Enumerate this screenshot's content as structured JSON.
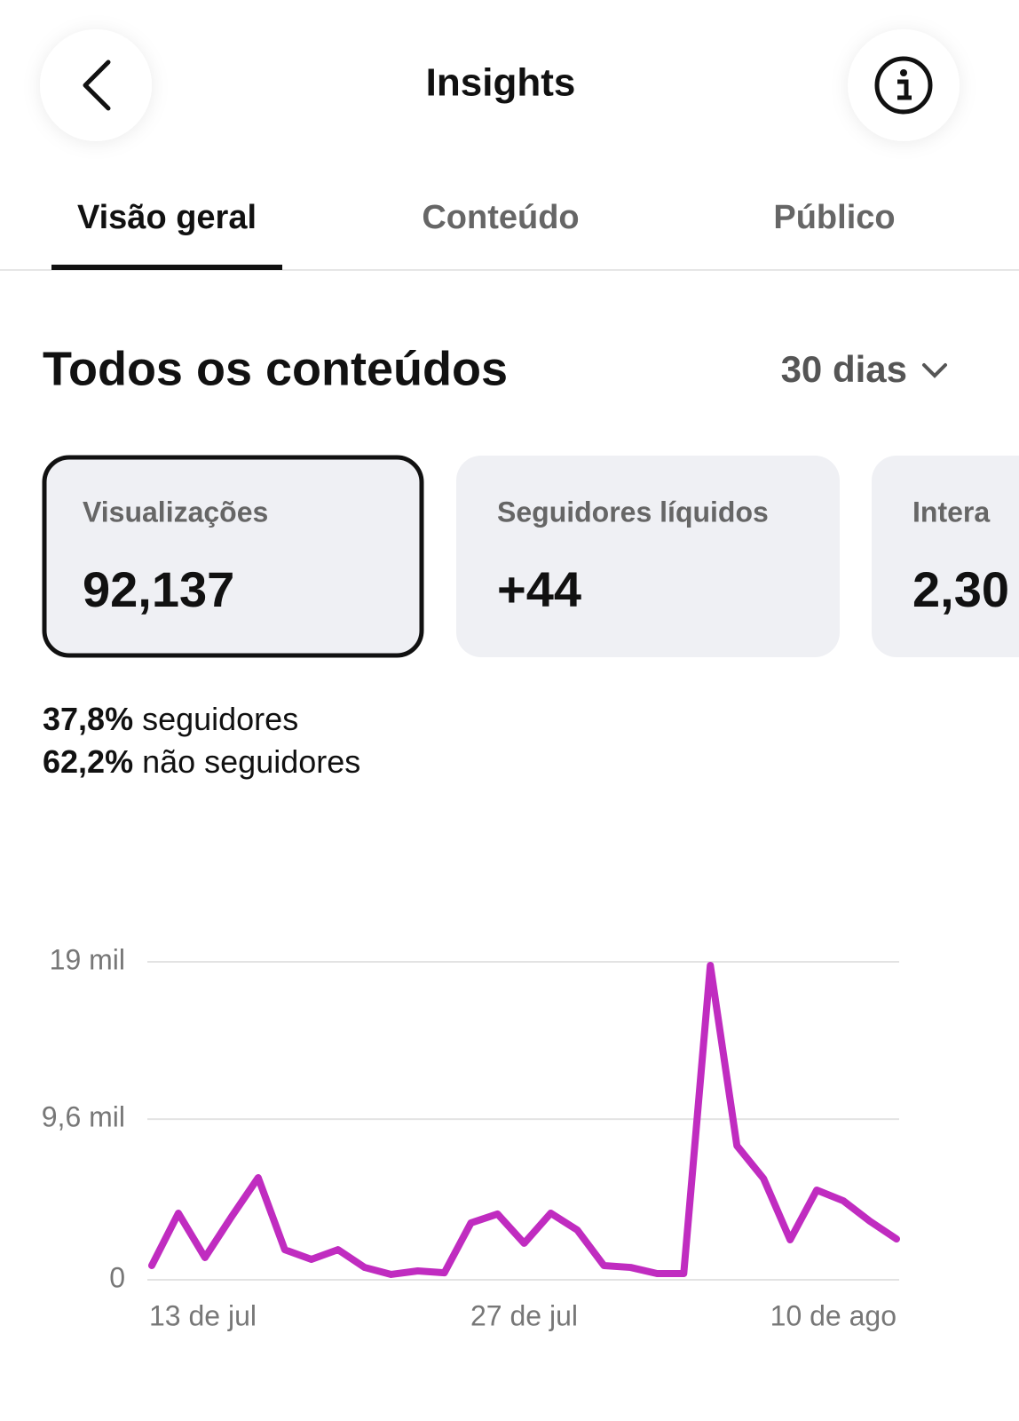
{
  "header": {
    "title": "Insights"
  },
  "tabs": [
    "Visão geral",
    "Conteúdo",
    "Público"
  ],
  "section": {
    "title": "Todos os conteúdos",
    "period": "30 dias"
  },
  "cards": [
    {
      "label": "Visualizações",
      "value": "92,137"
    },
    {
      "label": "Seguidores líquidos",
      "value": "+44"
    },
    {
      "label": "Intera",
      "value": "2,30"
    }
  ],
  "breakdown": [
    {
      "share": "37,8%",
      "label": "seguidores"
    },
    {
      "share": "62,2%",
      "label": "não seguidores"
    }
  ],
  "chart_data": {
    "type": "line",
    "categories": [
      "13 de jul",
      null,
      null,
      null,
      null,
      null,
      null,
      null,
      null,
      null,
      null,
      null,
      null,
      null,
      "27 de jul",
      null,
      null,
      null,
      null,
      null,
      null,
      null,
      null,
      null,
      null,
      null,
      null,
      null,
      "10 de ago"
    ],
    "series": [
      {
        "color": "#c02cc0",
        "values": [
          850,
          3980,
          1330,
          3770,
          6100,
          1800,
          1220,
          1800,
          740,
          320,
          530,
          420,
          3400,
          3930,
          2180,
          3980,
          2970,
          850,
          740,
          370,
          370,
          18790,
          8010,
          6050,
          2390,
          5360,
          4720,
          3500,
          2440
        ]
      }
    ],
    "ylim": [
      0,
      19000
    ],
    "yticks": [
      0,
      {
        "value": 9600,
        "label": "9,6 mil"
      },
      {
        "value": 19000,
        "label": "19 mil"
      }
    ],
    "grid": true
  }
}
